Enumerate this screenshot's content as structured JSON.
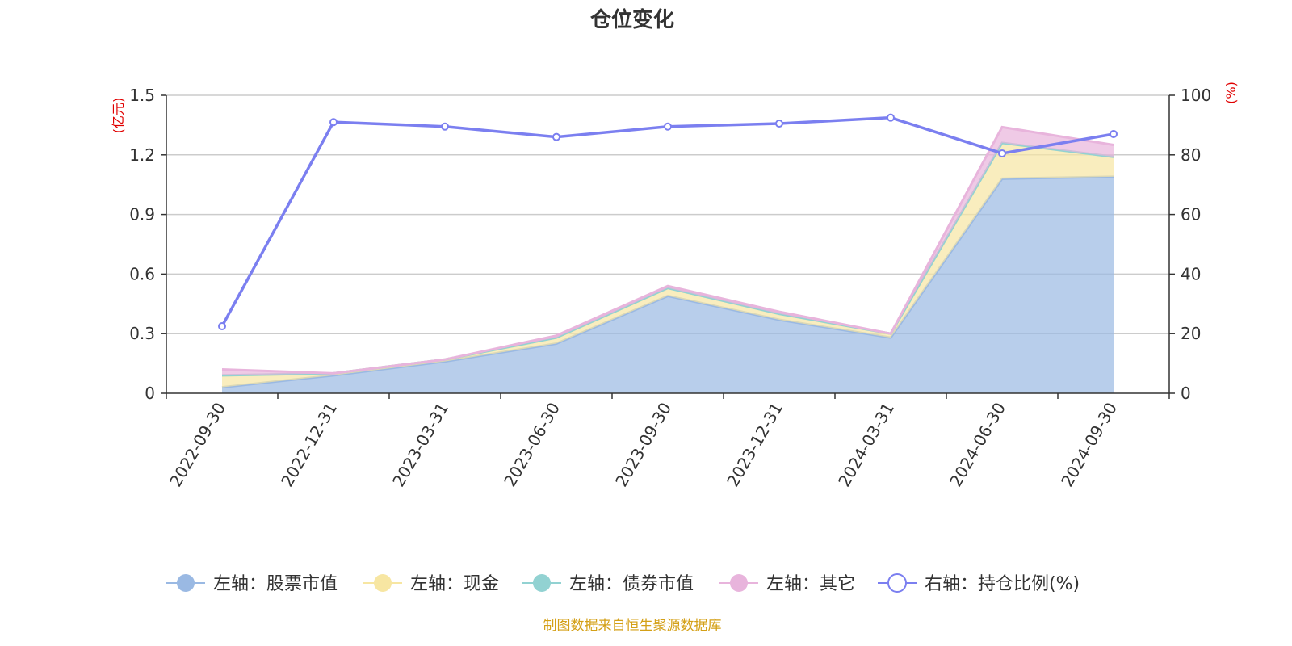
{
  "chart_data": {
    "type": "area",
    "title": "仓位变化",
    "categories": [
      "2022-09-30",
      "2022-12-31",
      "2023-03-31",
      "2023-06-30",
      "2023-09-30",
      "2023-12-31",
      "2024-03-31",
      "2024-06-30",
      "2024-09-30"
    ],
    "left_axis": {
      "unit": "(亿元)",
      "ylim": [
        0,
        1.5
      ],
      "ticks": [
        "0",
        "0.3",
        "0.6",
        "0.9",
        "1.2",
        "1.5"
      ]
    },
    "right_axis": {
      "unit": "(%)",
      "ylim": [
        0,
        100
      ],
      "ticks": [
        "0",
        "20",
        "40",
        "60",
        "80",
        "100"
      ]
    },
    "grid": true,
    "legend_position": "bottom",
    "series": [
      {
        "name": "左轴：股票市值",
        "axis": "left",
        "type": "area",
        "color": "#9ab9e3",
        "values": [
          0.03,
          0.09,
          0.16,
          0.25,
          0.49,
          0.37,
          0.28,
          1.08,
          1.09
        ]
      },
      {
        "name": "左轴：现金",
        "axis": "left",
        "type": "area",
        "color": "#f7e6a2",
        "values": [
          0.06,
          0.01,
          0.01,
          0.03,
          0.04,
          0.03,
          0.02,
          0.18,
          0.1
        ]
      },
      {
        "name": "左轴：债券市值",
        "axis": "left",
        "type": "area",
        "color": "#92d2d2",
        "values": [
          0,
          0,
          0,
          0,
          0,
          0,
          0,
          0,
          0
        ]
      },
      {
        "name": "左轴：其它",
        "axis": "left",
        "type": "area",
        "color": "#e8b4dc",
        "values": [
          0.03,
          0.0,
          0.0,
          0.01,
          0.01,
          0.01,
          0.0,
          0.08,
          0.06
        ]
      },
      {
        "name": "右轴：持仓比例(%)",
        "axis": "right",
        "type": "line",
        "color": "#7b7ff0",
        "values": [
          22.5,
          91,
          89.5,
          86,
          89.5,
          90.5,
          92.5,
          80.5,
          87
        ]
      }
    ]
  },
  "footer": {
    "source": "制图数据来自恒生聚源数据库"
  },
  "colors": {
    "axis_unit": "#e00000",
    "source_text": "#d4a017",
    "grid": "#cccccc",
    "axis": "#333333"
  }
}
